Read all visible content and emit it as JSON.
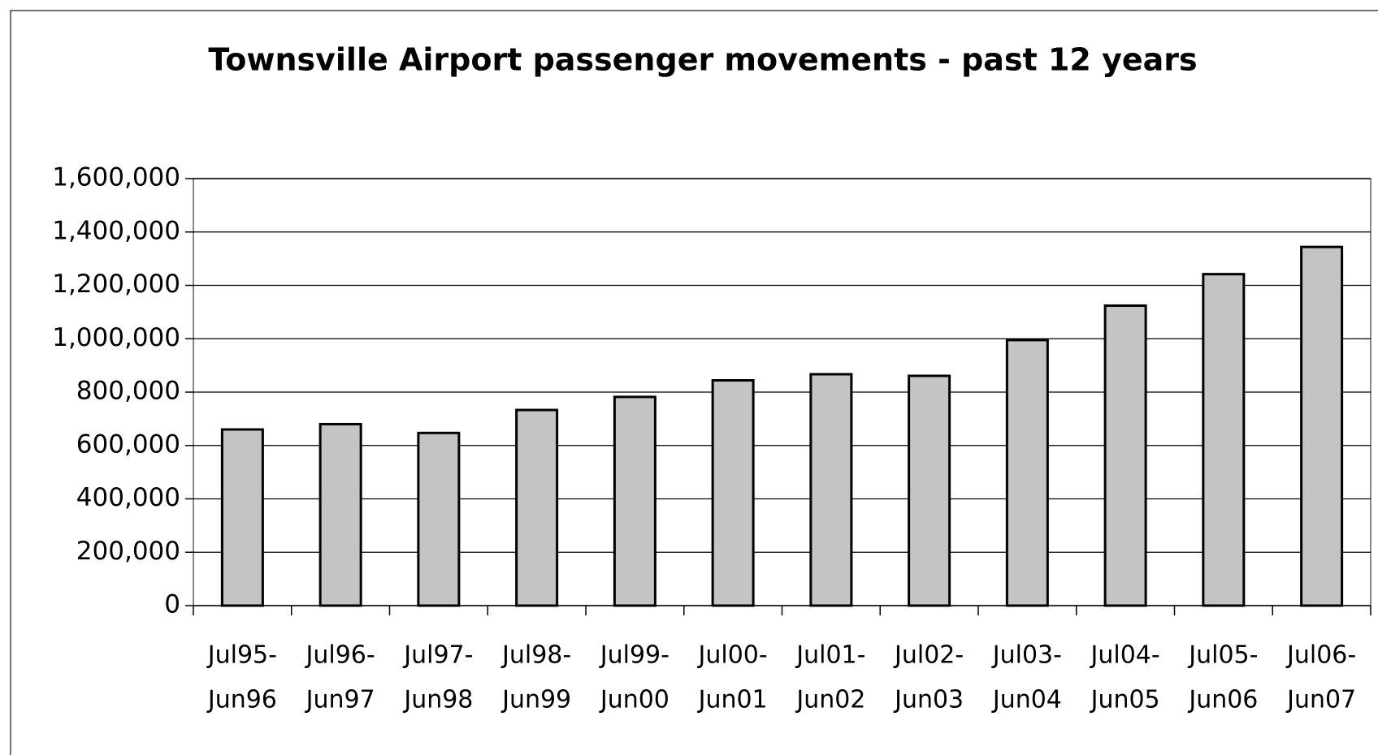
{
  "chart_data": {
    "type": "bar",
    "title": "Townsville Airport passenger movements - past 12 years",
    "categories": [
      [
        "Jul95-",
        "Jun96"
      ],
      [
        "Jul96-",
        "Jun97"
      ],
      [
        "Jul97-",
        "Jun98"
      ],
      [
        "Jul98-",
        "Jun99"
      ],
      [
        "Jul99-",
        "Jun00"
      ],
      [
        "Jul00-",
        "Jun01"
      ],
      [
        "Jul01-",
        "Jun02"
      ],
      [
        "Jul02-",
        "Jun03"
      ],
      [
        "Jul03-",
        "Jun04"
      ],
      [
        "Jul04-",
        "Jun05"
      ],
      [
        "Jul05-",
        "Jun06"
      ],
      [
        "Jul06-",
        "Jun07"
      ]
    ],
    "values": [
      660000,
      680000,
      647000,
      733000,
      782000,
      844000,
      867000,
      861000,
      995000,
      1124000,
      1242000,
      1344000
    ],
    "color": "#c4c4c4",
    "ylim": [
      0,
      1600000
    ],
    "yticks": [
      0,
      {
        "value": 200000,
        "label": "200,000"
      },
      {
        "value": 400000,
        "label": "400,000"
      },
      {
        "value": 600000,
        "label": "600,000"
      },
      {
        "value": 800000,
        "label": "800,000"
      },
      {
        "value": 1000000,
        "label": "1,000,000"
      },
      {
        "value": 1200000,
        "label": "1,200,000"
      },
      {
        "value": 1400000,
        "label": "1,400,000"
      },
      {
        "value": 1600000,
        "label": "1,600,000"
      }
    ],
    "grid": true
  }
}
